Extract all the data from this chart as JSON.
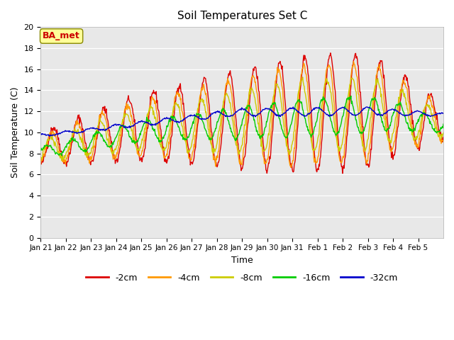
{
  "title": "Soil Temperatures Set C",
  "xlabel": "Time",
  "ylabel": "Soil Temperature (C)",
  "ylim": [
    0,
    20
  ],
  "bg_color": "#e8e8e8",
  "annotation_text": "BA_met",
  "annotation_color": "#cc0000",
  "annotation_bg": "#ffff99",
  "legend_entries": [
    "-2cm",
    "-4cm",
    "-8cm",
    "-16cm",
    "-32cm"
  ],
  "line_colors": [
    "#dd0000",
    "#ff9900",
    "#cccc00",
    "#00cc00",
    "#0000cc"
  ],
  "xtick_labels": [
    "Jan 21",
    "Jan 22",
    "Jan 23",
    "Jan 24",
    "Jan 25",
    "Jan 26",
    "Jan 27",
    "Jan 28",
    "Jan 29",
    "Jan 30",
    "Jan 31",
    "Feb 1",
    "Feb 2",
    "Feb 3",
    "Feb 4",
    "Feb 5"
  ],
  "n_days": 16
}
